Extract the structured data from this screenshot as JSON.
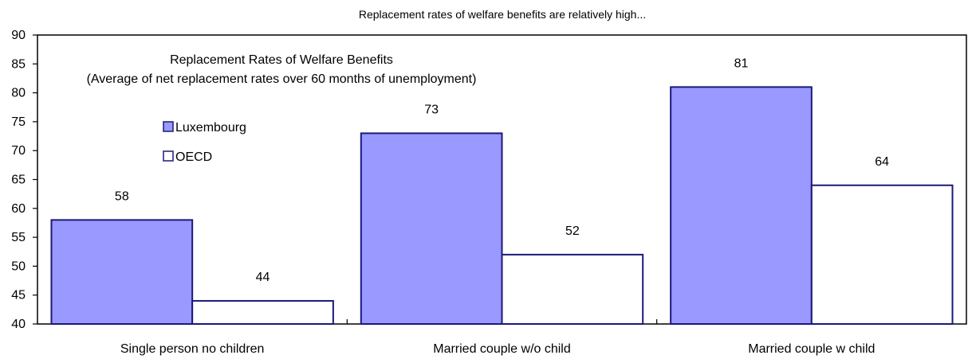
{
  "chart_data": {
    "type": "bar",
    "title": "Replacement rates of welfare benefits are relatively high...",
    "subtitle_lines": [
      "Replacement Rates of Welfare Benefits",
      "(Average of net replacement rates over 60 months of unemployment)"
    ],
    "categories": [
      "Single person no children",
      "Married couple w/o child",
      "Married couple w child"
    ],
    "series": [
      {
        "name": "Luxembourg",
        "values": [
          58,
          73,
          81
        ],
        "labels": [
          "58",
          "73",
          "81"
        ]
      },
      {
        "name": "OECD",
        "values": [
          44,
          52,
          64
        ],
        "labels": [
          "44",
          "52",
          "64"
        ]
      }
    ],
    "ylim": [
      40,
      90
    ],
    "yticks": [
      "40",
      "45",
      "50",
      "55",
      "60",
      "65",
      "70",
      "75",
      "80",
      "85",
      "90"
    ],
    "legend_position": "upper-left",
    "grid": false,
    "colors": {
      "luxembourg_fill": "#9999ff",
      "oecd_fill": "#ffffff",
      "bar_stroke": "#1a1a7a",
      "axis": "#000000"
    }
  }
}
